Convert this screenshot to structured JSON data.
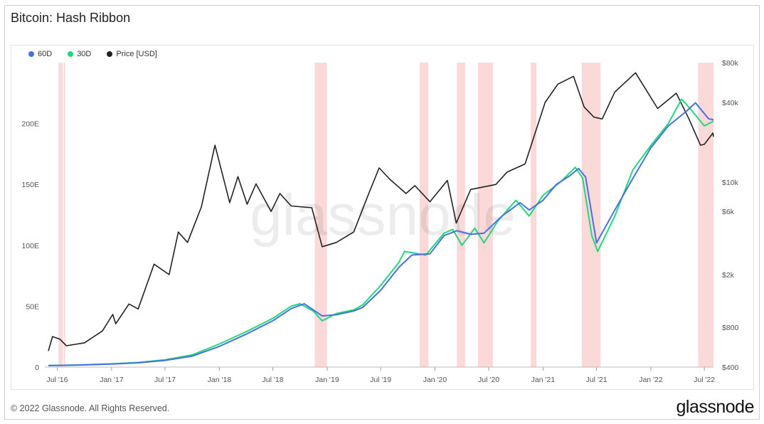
{
  "title": "Bitcoin: Hash Ribbon",
  "footer": {
    "copyright": "© 2022 Glassnode. All Rights Reserved.",
    "logo": "glassnode"
  },
  "watermark": "glassnode",
  "colors": {
    "ma60": "#4a6fe0",
    "ma30": "#1fd97a",
    "price": "#222222",
    "capitulation": "#f7b9b9"
  },
  "chart_data": {
    "type": "line",
    "title": "Bitcoin: Hash Ribbon",
    "legend": [
      {
        "name": "60D",
        "color": "#4a6fe0"
      },
      {
        "name": "30D",
        "color": "#1fd97a"
      },
      {
        "name": "Price [USD]",
        "color": "#222222"
      }
    ],
    "legend_position": "top-left",
    "x_ticks": [
      "Jul '16",
      "Jan '17",
      "Jul '17",
      "Jan '18",
      "Jul '18",
      "Jan '19",
      "Jul '19",
      "Jan '20",
      "Jul '20",
      "Jan '21",
      "Jul '21",
      "Jan '22",
      "Jul '22"
    ],
    "x_range": [
      "2016-06-01",
      "2022-08-01"
    ],
    "y_left_ticks": [
      "0",
      "50E",
      "100E",
      "150E",
      "200E"
    ],
    "y_left_range": [
      0,
      250
    ],
    "y_left_unit": "EH/s",
    "y_right_ticks": [
      "$400",
      "$800",
      "$2k",
      "$6k",
      "$10k",
      "$40k",
      "$80k"
    ],
    "y_right_scale": "log",
    "y_right_range": [
      400,
      80000
    ],
    "grid": false,
    "series": [
      {
        "name": "60D",
        "values": [
          [
            "2016-06-01",
            1.2
          ],
          [
            "2016-09-01",
            1.6
          ],
          [
            "2017-01-01",
            2.5
          ],
          [
            "2017-04-01",
            3.5
          ],
          [
            "2017-07-01",
            5.5
          ],
          [
            "2017-10-01",
            9
          ],
          [
            "2018-01-01",
            17
          ],
          [
            "2018-04-01",
            27
          ],
          [
            "2018-07-01",
            38
          ],
          [
            "2018-09-01",
            48
          ],
          [
            "2018-10-15",
            52
          ],
          [
            "2018-12-15",
            42
          ],
          [
            "2019-02-01",
            43
          ],
          [
            "2019-04-01",
            46
          ],
          [
            "2019-05-01",
            49
          ],
          [
            "2019-07-01",
            63
          ],
          [
            "2019-09-01",
            82
          ],
          [
            "2019-10-15",
            92
          ],
          [
            "2019-12-15",
            93
          ],
          [
            "2020-02-01",
            108
          ],
          [
            "2020-03-15",
            112
          ],
          [
            "2020-05-01",
            109
          ],
          [
            "2020-06-15",
            110
          ],
          [
            "2020-08-15",
            124
          ],
          [
            "2020-10-15",
            135
          ],
          [
            "2020-11-15",
            129
          ],
          [
            "2021-01-01",
            137
          ],
          [
            "2021-02-15",
            150
          ],
          [
            "2021-04-01",
            157
          ],
          [
            "2021-05-01",
            163
          ],
          [
            "2021-05-25",
            156
          ],
          [
            "2021-07-01",
            102
          ],
          [
            "2021-09-01",
            129
          ],
          [
            "2021-11-01",
            155
          ],
          [
            "2022-01-01",
            180
          ],
          [
            "2022-03-01",
            198
          ],
          [
            "2022-05-01",
            210
          ],
          [
            "2022-06-01",
            217
          ],
          [
            "2022-07-15",
            204
          ],
          [
            "2022-08-01",
            203
          ]
        ]
      },
      {
        "name": "30D",
        "values": [
          [
            "2016-06-01",
            1.3
          ],
          [
            "2016-09-01",
            1.7
          ],
          [
            "2017-01-01",
            2.7
          ],
          [
            "2017-04-01",
            3.8
          ],
          [
            "2017-07-01",
            6
          ],
          [
            "2017-10-01",
            10
          ],
          [
            "2018-01-01",
            19
          ],
          [
            "2018-04-01",
            29
          ],
          [
            "2018-07-01",
            40
          ],
          [
            "2018-09-01",
            50
          ],
          [
            "2018-10-01",
            52
          ],
          [
            "2018-11-15",
            46
          ],
          [
            "2018-12-15",
            38
          ],
          [
            "2019-02-01",
            44
          ],
          [
            "2019-04-01",
            47
          ],
          [
            "2019-05-01",
            51
          ],
          [
            "2019-07-01",
            67
          ],
          [
            "2019-09-01",
            86
          ],
          [
            "2019-09-20",
            95
          ],
          [
            "2019-12-01",
            92
          ],
          [
            "2020-02-01",
            110
          ],
          [
            "2020-03-01",
            113
          ],
          [
            "2020-04-01",
            100
          ],
          [
            "2020-05-15",
            114
          ],
          [
            "2020-06-15",
            102
          ],
          [
            "2020-08-01",
            120
          ],
          [
            "2020-10-01",
            137
          ],
          [
            "2020-11-15",
            124
          ],
          [
            "2021-01-01",
            141
          ],
          [
            "2021-03-01",
            152
          ],
          [
            "2021-04-20",
            164
          ],
          [
            "2021-05-15",
            155
          ],
          [
            "2021-06-15",
            108
          ],
          [
            "2021-07-05",
            95
          ],
          [
            "2021-09-01",
            124
          ],
          [
            "2021-11-01",
            162
          ],
          [
            "2022-01-01",
            182
          ],
          [
            "2022-03-01",
            200
          ],
          [
            "2022-04-15",
            220
          ],
          [
            "2022-05-15",
            212
          ],
          [
            "2022-07-01",
            198
          ],
          [
            "2022-08-01",
            202
          ]
        ]
      },
      {
        "name": "Price [USD]",
        "values": [
          [
            "2016-06-01",
            530
          ],
          [
            "2016-06-15",
            680
          ],
          [
            "2016-07-10",
            650
          ],
          [
            "2016-08-01",
            580
          ],
          [
            "2016-10-01",
            610
          ],
          [
            "2016-12-01",
            750
          ],
          [
            "2017-01-05",
            1000
          ],
          [
            "2017-01-15",
            850
          ],
          [
            "2017-03-01",
            1200
          ],
          [
            "2017-04-01",
            1100
          ],
          [
            "2017-05-25",
            2400
          ],
          [
            "2017-07-15",
            2000
          ],
          [
            "2017-08-15",
            4200
          ],
          [
            "2017-09-15",
            3500
          ],
          [
            "2017-11-01",
            6500
          ],
          [
            "2017-12-17",
            19000
          ],
          [
            "2018-02-05",
            7000
          ],
          [
            "2018-03-05",
            11000
          ],
          [
            "2018-04-05",
            6800
          ],
          [
            "2018-05-05",
            9700
          ],
          [
            "2018-06-25",
            6000
          ],
          [
            "2018-07-25",
            8200
          ],
          [
            "2018-09-01",
            6600
          ],
          [
            "2018-11-10",
            6400
          ],
          [
            "2018-12-15",
            3250
          ],
          [
            "2019-02-01",
            3500
          ],
          [
            "2019-04-01",
            4200
          ],
          [
            "2019-05-20",
            8000
          ],
          [
            "2019-06-26",
            12800
          ],
          [
            "2019-08-01",
            10500
          ],
          [
            "2019-09-25",
            8200
          ],
          [
            "2019-10-25",
            9400
          ],
          [
            "2019-12-15",
            7100
          ],
          [
            "2020-02-12",
            10300
          ],
          [
            "2020-03-13",
            4900
          ],
          [
            "2020-05-01",
            8800
          ],
          [
            "2020-07-25",
            9600
          ],
          [
            "2020-09-01",
            11900
          ],
          [
            "2020-11-01",
            13700
          ],
          [
            "2021-01-08",
            40000
          ],
          [
            "2021-02-20",
            55000
          ],
          [
            "2021-04-14",
            63000
          ],
          [
            "2021-05-20",
            37000
          ],
          [
            "2021-06-22",
            31000
          ],
          [
            "2021-07-20",
            30000
          ],
          [
            "2021-09-01",
            48000
          ],
          [
            "2021-11-10",
            67000
          ],
          [
            "2022-01-24",
            36000
          ],
          [
            "2022-03-28",
            47000
          ],
          [
            "2022-05-10",
            30000
          ],
          [
            "2022-06-18",
            19000
          ],
          [
            "2022-07-01",
            19300
          ],
          [
            "2022-07-30",
            23500
          ],
          [
            "2022-08-01",
            22000
          ]
        ]
      }
    ],
    "capitulation_periods": [
      [
        "2016-07-05",
        "2016-07-20"
      ],
      [
        "2016-07-23",
        "2016-07-28"
      ],
      [
        "2018-11-20",
        "2018-12-31"
      ],
      [
        "2019-11-10",
        "2019-12-10"
      ],
      [
        "2020-03-15",
        "2020-04-12"
      ],
      [
        "2020-05-25",
        "2020-07-15"
      ],
      [
        "2020-11-20",
        "2020-12-10"
      ],
      [
        "2021-05-12",
        "2021-07-15"
      ],
      [
        "2022-06-10",
        "2022-08-01"
      ]
    ]
  }
}
